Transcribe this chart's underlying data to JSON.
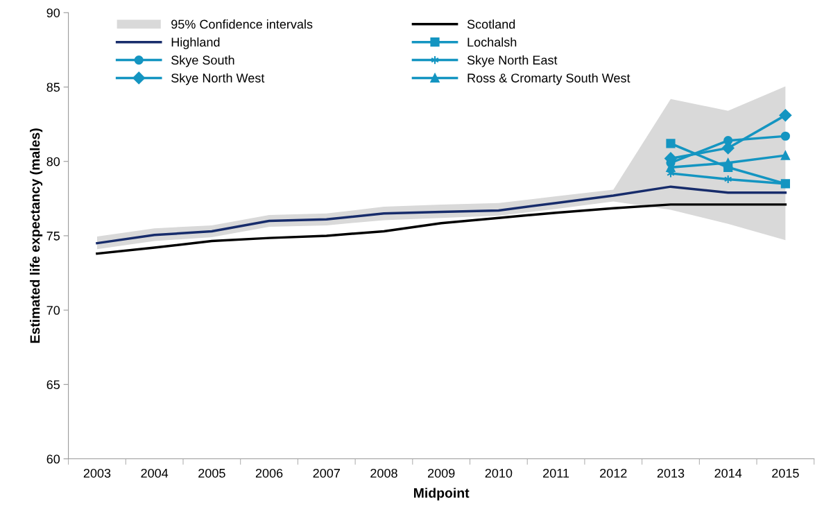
{
  "chart_data": {
    "type": "line",
    "xlabel": "Midpoint",
    "ylabel": "Estimated life expectancy (males)",
    "categories": [
      "2003",
      "2004",
      "2005",
      "2006",
      "2007",
      "2008",
      "2009",
      "2010",
      "2011",
      "2012",
      "2013",
      "2014",
      "2015"
    ],
    "ylim": [
      60,
      90
    ],
    "yticks": [
      60,
      65,
      70,
      75,
      80,
      85,
      90
    ],
    "grid": false,
    "legend": "top left",
    "series": [
      {
        "name": "95% Confidence intervals",
        "type": "area",
        "color": "#d9d9d9",
        "values": [
          null,
          null,
          null,
          null,
          null,
          null,
          null,
          null,
          null,
          null,
          null,
          null,
          null
        ],
        "lower": [
          74.1,
          74.65,
          74.9,
          75.6,
          75.7,
          76.05,
          76.2,
          76.35,
          76.8,
          77.3,
          76.75,
          75.8,
          74.7
        ],
        "upper": [
          74.95,
          75.5,
          75.7,
          76.4,
          76.5,
          76.95,
          77.1,
          77.2,
          77.65,
          78.1,
          84.2,
          83.4,
          85.05
        ]
      },
      {
        "name": "Scotland",
        "color": "#000000",
        "marker": "none",
        "values": [
          73.8,
          74.2,
          74.65,
          74.85,
          75.0,
          75.3,
          75.85,
          76.2,
          76.55,
          76.85,
          77.1,
          77.1,
          77.1
        ]
      },
      {
        "name": "Highland",
        "color": "#172c6b",
        "marker": "none",
        "values": [
          74.5,
          75.05,
          75.3,
          76.0,
          76.1,
          76.5,
          76.6,
          76.7,
          77.2,
          77.7,
          78.3,
          77.9,
          77.9
        ]
      },
      {
        "name": "Lochalsh",
        "color": "#1495c1",
        "marker": "square",
        "values": [
          null,
          null,
          null,
          null,
          null,
          null,
          null,
          null,
          null,
          null,
          81.2,
          79.6,
          78.5
        ]
      },
      {
        "name": "Skye South",
        "color": "#1495c1",
        "marker": "circle",
        "values": [
          null,
          null,
          null,
          null,
          null,
          null,
          null,
          null,
          null,
          null,
          79.9,
          81.4,
          81.7
        ]
      },
      {
        "name": "Skye North East",
        "color": "#1495c1",
        "marker": "cross",
        "values": [
          null,
          null,
          null,
          null,
          null,
          null,
          null,
          null,
          null,
          null,
          79.2,
          78.8,
          78.5
        ]
      },
      {
        "name": "Skye North West",
        "color": "#1495c1",
        "marker": "diamond",
        "values": [
          null,
          null,
          null,
          null,
          null,
          null,
          null,
          null,
          null,
          null,
          80.2,
          80.9,
          83.1
        ]
      },
      {
        "name": "Ross & Cromarty South West",
        "color": "#1495c1",
        "marker": "triangle",
        "values": [
          null,
          null,
          null,
          null,
          null,
          null,
          null,
          null,
          null,
          null,
          79.6,
          79.9,
          80.4
        ]
      }
    ]
  }
}
